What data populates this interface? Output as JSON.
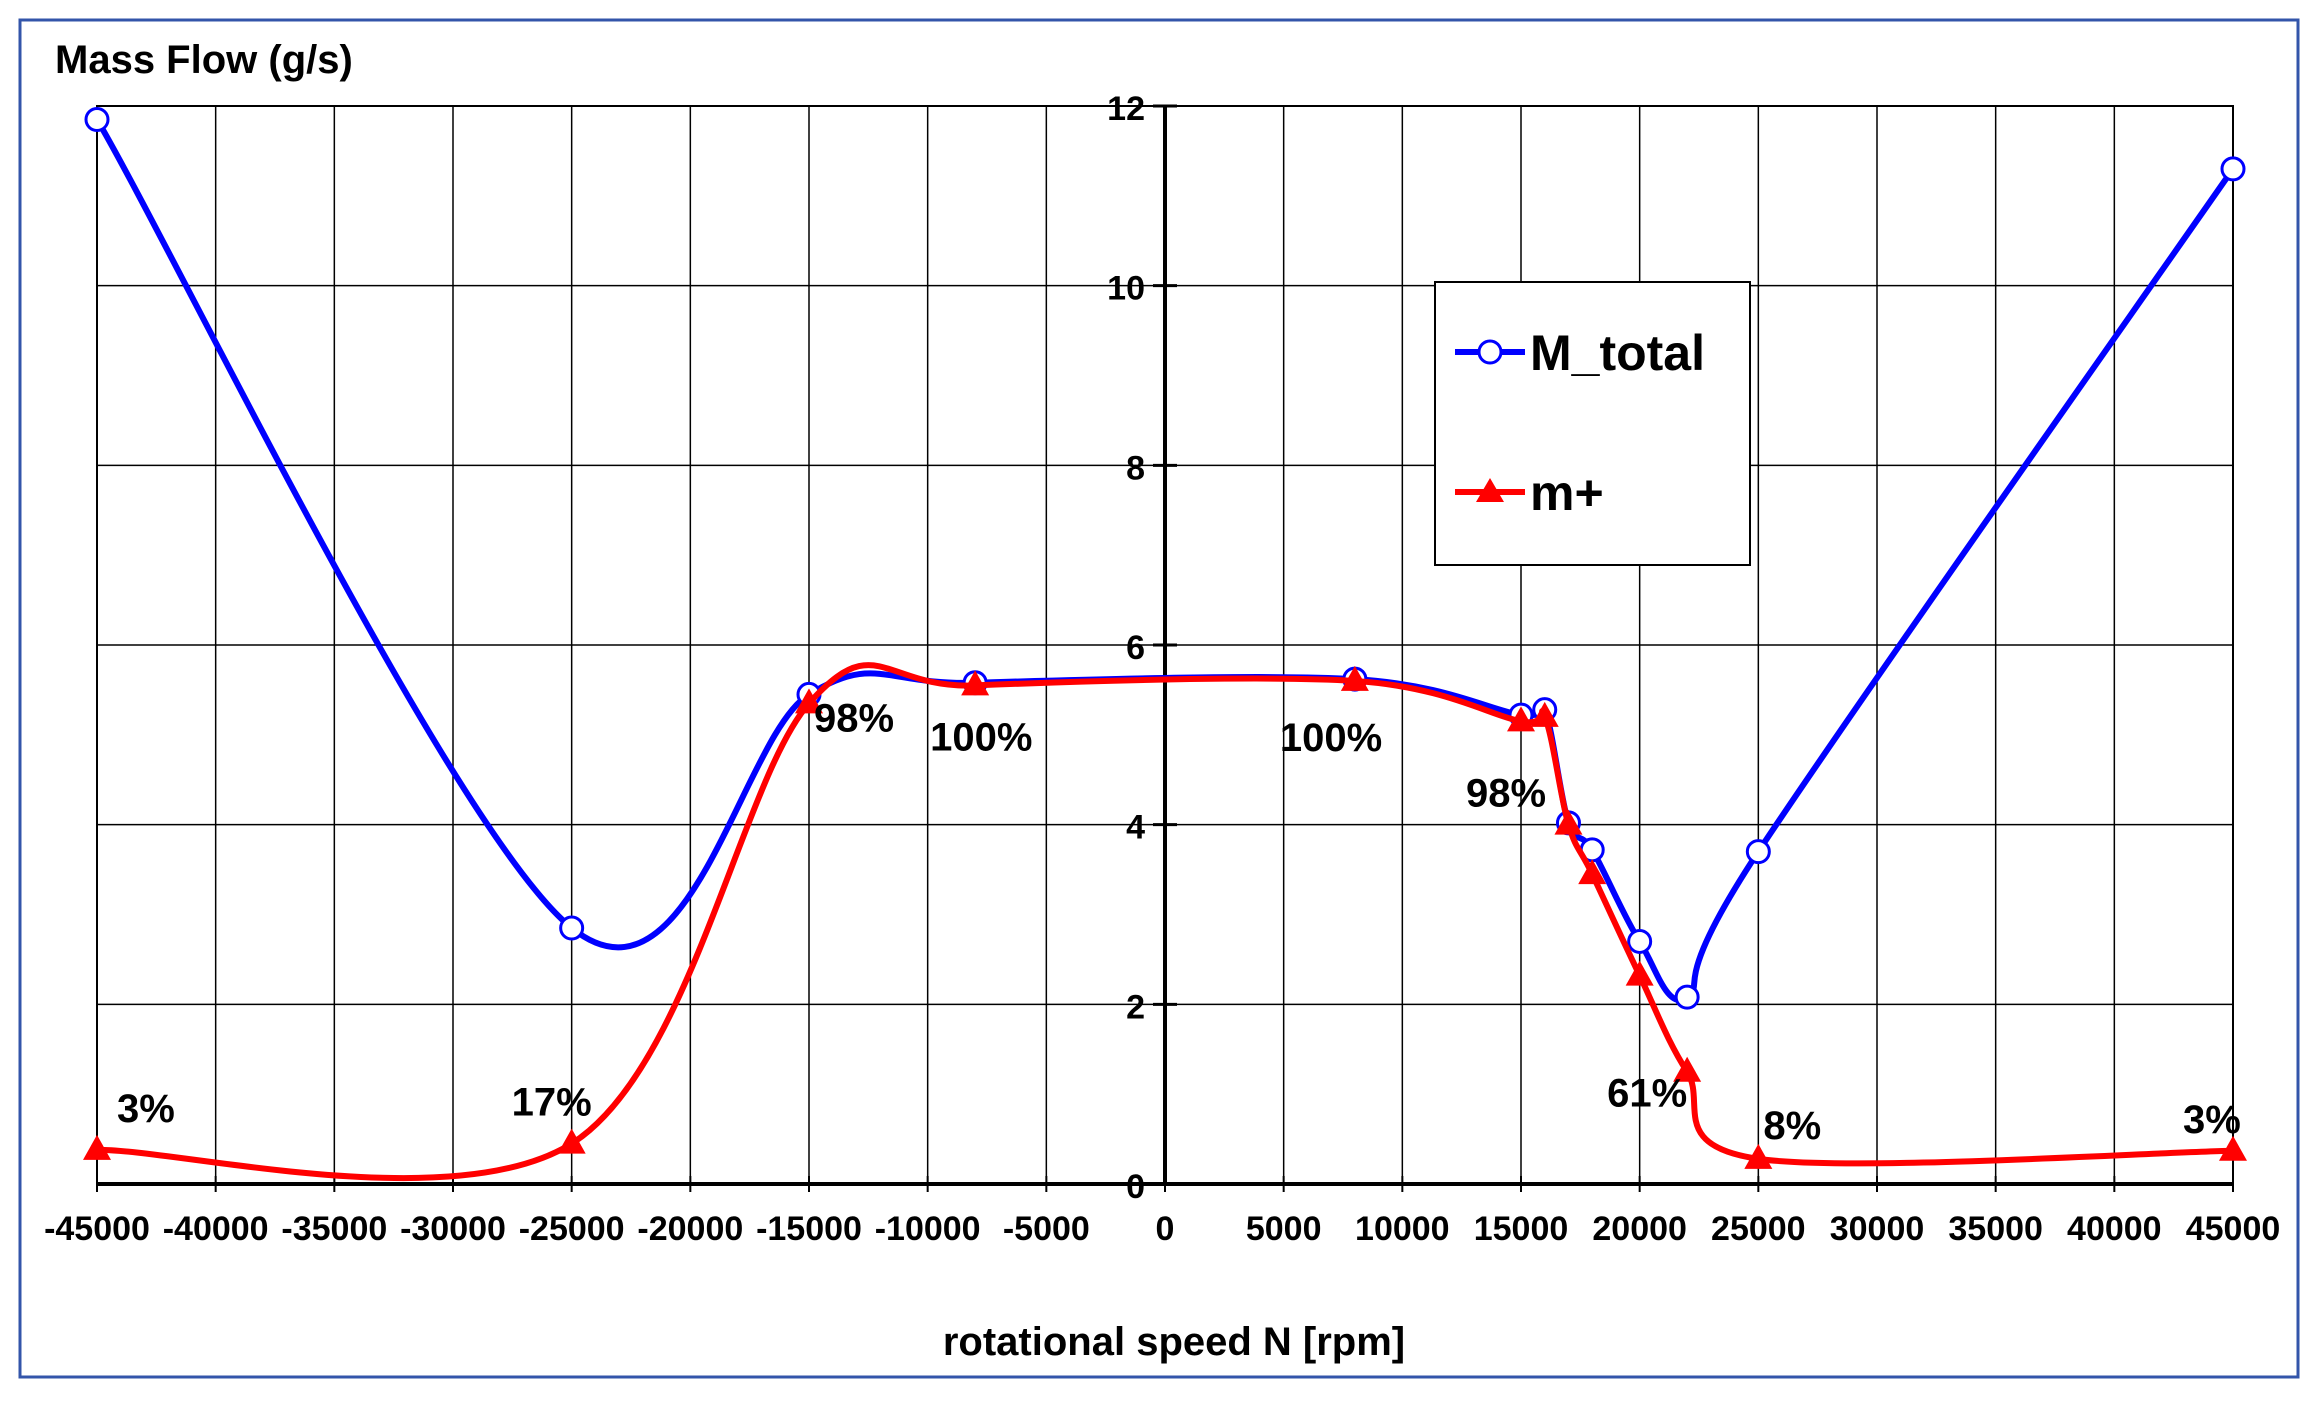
{
  "chart_data": {
    "type": "line",
    "title": "Mass Flow (g/s)",
    "xlabel": "rotational speed N [rpm]",
    "ylabel": "Mass Flow (g/s)",
    "xlim": [
      -45000,
      45000
    ],
    "ylim": [
      0,
      12
    ],
    "x_ticks": [
      -45000,
      -40000,
      -35000,
      -30000,
      -25000,
      -20000,
      -15000,
      -10000,
      -5000,
      0,
      5000,
      10000,
      15000,
      20000,
      25000,
      30000,
      35000,
      40000,
      45000
    ],
    "y_ticks": [
      0,
      2,
      4,
      6,
      8,
      10,
      12
    ],
    "grid": true,
    "legend_position": "top-right",
    "series": [
      {
        "name": "M_total",
        "color": "#0000ff",
        "marker": "circle",
        "x": [
          -45000,
          -25000,
          -15000,
          -8000,
          8000,
          15000,
          16000,
          17000,
          18000,
          20000,
          22000,
          25000,
          45000
        ],
        "values": [
          11.85,
          2.85,
          5.45,
          5.58,
          5.62,
          5.22,
          5.28,
          4.02,
          3.72,
          2.7,
          2.08,
          3.7,
          11.3
        ]
      },
      {
        "name": "m+",
        "color": "#ff0000",
        "marker": "triangle",
        "x": [
          -45000,
          -25000,
          -15000,
          -8000,
          8000,
          15000,
          16000,
          17000,
          18000,
          20000,
          22000,
          25000,
          45000
        ],
        "values": [
          0.38,
          0.45,
          5.35,
          5.55,
          5.6,
          5.15,
          5.2,
          4.0,
          3.45,
          2.32,
          1.25,
          0.28,
          0.37
        ]
      }
    ],
    "annotations": [
      {
        "text": "3%",
        "x": -45000,
        "y": 0.38
      },
      {
        "text": "17%",
        "x": -25000,
        "y": 0.45
      },
      {
        "text": "98%",
        "x": -15000,
        "y": 5.35
      },
      {
        "text": "100%",
        "x": -8000,
        "y": 5.55
      },
      {
        "text": "100%",
        "x": 8000,
        "y": 5.6
      },
      {
        "text": "98%",
        "x": 15000,
        "y": 5.15
      },
      {
        "text": "61%",
        "x": 22000,
        "y": 1.25
      },
      {
        "text": "8%",
        "x": 25000,
        "y": 0.28
      },
      {
        "text": "3%",
        "x": 45000,
        "y": 0.37
      }
    ]
  }
}
